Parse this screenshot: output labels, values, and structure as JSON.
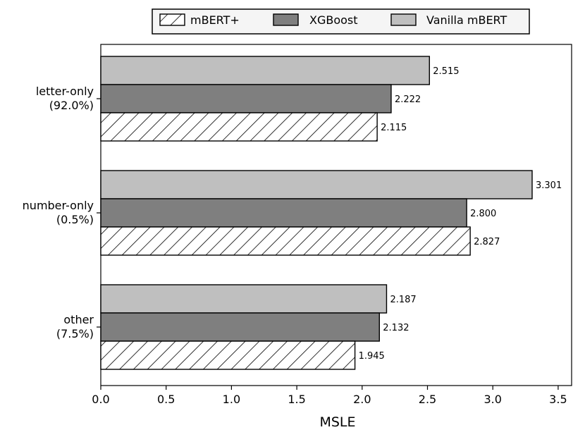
{
  "chart_data": {
    "type": "bar",
    "orientation": "horizontal",
    "xlabel": "MSLE",
    "xlim": [
      0,
      3.6
    ],
    "xticks": [
      "0.0",
      "0.5",
      "1.0",
      "1.5",
      "2.0",
      "2.5",
      "3.0",
      "3.5"
    ],
    "categories": [
      {
        "line1": "letter-only",
        "line2": "(92.0%)"
      },
      {
        "line1": "number-only",
        "line2": "(0.5%)"
      },
      {
        "line1": "other",
        "line2": "(7.5%)"
      }
    ],
    "series": [
      {
        "name": "mBERT+",
        "values": [
          2.115,
          2.827,
          1.945
        ],
        "labels": [
          "2.115",
          "2.827",
          "1.945"
        ],
        "color": "#ffffff",
        "hatch": true
      },
      {
        "name": "XGBoost",
        "values": [
          2.222,
          2.8,
          2.132
        ],
        "labels": [
          "2.222",
          "2.800",
          "2.132"
        ],
        "color": "#7f7f7f",
        "hatch": false
      },
      {
        "name": "Vanilla mBERT",
        "values": [
          2.515,
          3.301,
          2.187
        ],
        "labels": [
          "2.515",
          "3.301",
          "2.187"
        ],
        "color": "#bfbfbf",
        "hatch": false
      }
    ],
    "legend_position": "top",
    "grid": false
  }
}
